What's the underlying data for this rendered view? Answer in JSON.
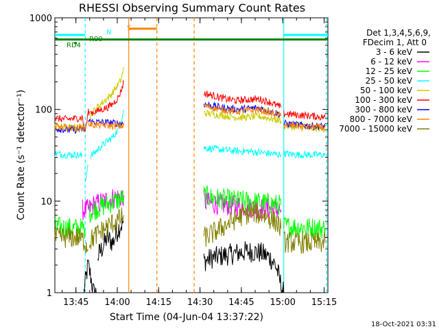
{
  "chart_data": {
    "type": "line",
    "title": "RHESSI Observing Summary Count Rates",
    "xlabel": "Start Time (04-Jun-04 13:37:22)",
    "ylabel": "Count Rate (s⁻¹ detector⁻¹)",
    "yscale": "log",
    "ylim": [
      1,
      1000
    ],
    "xlim_minutes": [
      0,
      99
    ],
    "yticks": [
      {
        "value": 1,
        "label": "1"
      },
      {
        "value": 10,
        "label": "10"
      },
      {
        "value": 100,
        "label": "100"
      },
      {
        "value": 1000,
        "label": "1000"
      }
    ],
    "xticks": [
      {
        "value": 7.63,
        "label": "13:45"
      },
      {
        "value": 22.63,
        "label": "14:00"
      },
      {
        "value": 37.63,
        "label": "14:15"
      },
      {
        "value": 52.63,
        "label": "14:30"
      },
      {
        "value": 67.63,
        "label": "14:45"
      },
      {
        "value": 82.63,
        "label": "15:00"
      },
      {
        "value": 97.63,
        "label": "15:15"
      }
    ],
    "legend_header": [
      "Det 1,3,4,5,6,9,",
      "FDecim 1, Att 0"
    ],
    "series": [
      {
        "name": "3 - 6 keV",
        "color": "#000000",
        "segments": [
          {
            "x": [
              10.5,
              12,
              13,
              14,
              15
            ],
            "y": [
              1,
              2,
              1.5,
              1,
              1
            ]
          },
          {
            "x": [
              15.5,
              17,
              19,
              21,
              23,
              25
            ],
            "y": [
              2.5,
              3,
              4,
              3.5,
              5,
              6
            ]
          },
          {
            "x": [
              54,
              57,
              60,
              63,
              66,
              69,
              72,
              75,
              78,
              80,
              81,
              82,
              83
            ],
            "y": [
              2.2,
              2.4,
              2.5,
              2.6,
              2.7,
              2.8,
              2.8,
              2.7,
              2.4,
              2,
              1.6,
              1.2,
              1
            ]
          }
        ]
      },
      {
        "name": "6 - 12 keV",
        "color": "#ff00ff",
        "segments": [
          {
            "x": [
              10,
              12,
              14,
              16,
              18,
              20,
              22,
              24,
              25
            ],
            "y": [
              8,
              8,
              9,
              9.5,
              10,
              10.5,
              11,
              11,
              11.5
            ]
          },
          {
            "x": [
              54,
              56,
              60,
              64,
              68,
              72,
              76,
              80,
              82
            ],
            "y": [
              10,
              9.5,
              9.2,
              9,
              8.8,
              8.5,
              8.3,
              8,
              8
            ]
          }
        ]
      },
      {
        "name": "12 - 25 keV",
        "color": "#00ff00",
        "segments": [
          {
            "x": [
              0,
              4,
              8,
              10,
              11
            ],
            "y": [
              5.2,
              5.1,
              5,
              5,
              5
            ]
          },
          {
            "x": [
              12.5,
              14,
              16,
              18,
              20,
              22,
              24,
              25
            ],
            "y": [
              7.5,
              8,
              8.5,
              9,
              9.5,
              10,
              10.5,
              11
            ]
          },
          {
            "x": [
              54,
              56,
              60,
              64,
              68,
              72,
              76,
              80,
              82
            ],
            "y": [
              11.5,
              11,
              10.5,
              10.2,
              10,
              9.8,
              9.5,
              9.2,
              9
            ]
          },
          {
            "x": [
              83,
              88,
              93,
              98
            ],
            "y": [
              5.3,
              5.2,
              5.1,
              5
            ]
          }
        ]
      },
      {
        "name": "25 - 50 keV",
        "color": "#00ffff",
        "segments": [
          {
            "x": [
              0,
              4,
              8,
              10
            ],
            "y": [
              33,
              32,
              32,
              31
            ]
          },
          {
            "x": [
              11,
              12
            ],
            "y": [
              16,
              25
            ]
          },
          {
            "x": [
              13,
              15,
              17,
              19,
              21,
              23,
              24,
              25
            ],
            "y": [
              31,
              35,
              40,
              45,
              50,
              60,
              75,
              100
            ]
          },
          {
            "x": [
              54,
              58,
              62,
              66,
              70,
              74,
              78,
              82
            ],
            "y": [
              38,
              37,
              36,
              35,
              35,
              34,
              33,
              32
            ]
          },
          {
            "x": [
              83,
              88,
              93,
              98
            ],
            "y": [
              33,
              32,
              32,
              32
            ]
          }
        ]
      },
      {
        "name": "50 - 100 keV",
        "color": "#cccc00",
        "segments": [
          {
            "x": [
              0,
              4,
              8,
              10,
              11
            ],
            "y": [
              65,
              63,
              62,
              64,
              63
            ]
          },
          {
            "x": [
              12,
              14,
              16,
              18,
              20,
              22,
              24,
              25
            ],
            "y": [
              80,
              95,
              110,
              125,
              140,
              170,
              210,
              290
            ]
          },
          {
            "x": [
              54,
              58,
              62,
              66,
              70,
              74,
              78,
              82
            ],
            "y": [
              92,
              88,
              85,
              82,
              82,
              84,
              80,
              75
            ]
          },
          {
            "x": [
              83,
              88,
              93,
              98
            ],
            "y": [
              66,
              64,
              62,
              62
            ]
          }
        ]
      },
      {
        "name": "100 - 300 keV",
        "color": "#ff0000",
        "segments": [
          {
            "x": [
              0,
              4,
              8,
              10,
              10.8,
              11.5,
              12,
              12.5
            ],
            "y": [
              80,
              78,
              80,
              82,
              56,
              70,
              92,
              95
            ]
          },
          {
            "x": [
              13,
              15,
              17,
              19,
              21,
              23,
              24,
              25
            ],
            "y": [
              92,
              95,
              100,
              105,
              115,
              135,
              160,
              200
            ]
          },
          {
            "x": [
              54,
              58,
              62,
              66,
              70,
              74,
              78,
              82
            ],
            "y": [
              150,
              140,
              130,
              125,
              128,
              130,
              120,
              105
            ]
          },
          {
            "x": [
              83,
              88,
              93,
              98
            ],
            "y": [
              90,
              87,
              85,
              82
            ]
          }
        ]
      },
      {
        "name": "300 - 800 keV",
        "color": "#0000ff",
        "segments": [
          {
            "x": [
              0,
              4,
              8,
              10,
              11
            ],
            "y": [
              62,
              60,
              60,
              61,
              60
            ]
          },
          {
            "x": [
              12,
              14,
              18,
              22,
              25
            ],
            "y": [
              74,
              73,
              72,
              71,
              70
            ]
          },
          {
            "x": [
              54,
              58,
              62,
              66,
              70,
              74,
              78,
              82
            ],
            "y": [
              115,
              108,
              103,
              100,
              102,
              104,
              96,
              88
            ]
          },
          {
            "x": [
              83,
              88,
              93,
              98
            ],
            "y": [
              70,
              68,
              66,
              65
            ]
          }
        ]
      },
      {
        "name": "800 - 7000 keV",
        "color": "#ff8000",
        "segments": [
          {
            "x": [
              0,
              4,
              8,
              10,
              11
            ],
            "y": [
              65,
              63,
              63,
              64,
              63
            ]
          },
          {
            "x": [
              12,
              14,
              18,
              22,
              25
            ],
            "y": [
              70,
              68,
              67,
              66,
              66
            ]
          },
          {
            "x": [
              54,
              58,
              62,
              66,
              70,
              74,
              78,
              82
            ],
            "y": [
              110,
              103,
              98,
              95,
              97,
              99,
              92,
              85
            ]
          },
          {
            "x": [
              83,
              88,
              93,
              98
            ],
            "y": [
              68,
              66,
              64,
              64
            ]
          }
        ]
      },
      {
        "name": "7000 - 15000 keV",
        "color": "#808000",
        "segments": [
          {
            "x": [
              0,
              4,
              8,
              10,
              11,
              12
            ],
            "y": [
              4,
              4,
              4,
              3.8,
              3.5,
              3
            ]
          },
          {
            "x": [
              12.5,
              14,
              16,
              18,
              20,
              22,
              24,
              25
            ],
            "y": [
              3.6,
              4,
              4.5,
              5,
              5.5,
              6,
              6.5,
              7
            ]
          },
          {
            "x": [
              54,
              56,
              60,
              64,
              68,
              72,
              76,
              80,
              82
            ],
            "y": [
              4,
              4.2,
              5,
              6,
              7,
              7.5,
              7,
              6,
              5
            ]
          },
          {
            "x": [
              83,
              88,
              93,
              98
            ],
            "y": [
              3.6,
              3.5,
              3.5,
              3.5
            ]
          }
        ]
      }
    ],
    "flags": [
      {
        "label": "N",
        "color": "#00ffff",
        "y_value": 650,
        "x_start": 0,
        "x_end": 11
      },
      {
        "label": "RD4",
        "color": "#008000",
        "y_value": 530,
        "x_start": 7,
        "x_end": 8
      },
      {
        "label": "R00",
        "color": "#008000",
        "y_value": 580,
        "x_start": 0,
        "x_end": 99
      },
      {
        "label": "S",
        "color": "#ff8000",
        "y_value": 760,
        "x_start": 27,
        "x_end": 37
      }
    ],
    "flag_n_right": {
      "color": "#00ffff",
      "y_value": 650,
      "x_start": 83,
      "x_end": 99
    },
    "vlines": [
      {
        "x": 11,
        "color": "#00ffff",
        "style": "dashed"
      },
      {
        "x": 83,
        "color": "#00ffff",
        "style": "solid"
      },
      {
        "x": 98.5,
        "color": "#00ffff",
        "style": "dashed"
      },
      {
        "x": 26.8,
        "color": "#ff8000",
        "style": "solid"
      },
      {
        "x": 37,
        "color": "#ff8000",
        "style": "dashed"
      },
      {
        "x": 50.5,
        "color": "#ff8000",
        "style": "dashed"
      }
    ],
    "timestamp": "18-Oct-2021 03:31"
  }
}
